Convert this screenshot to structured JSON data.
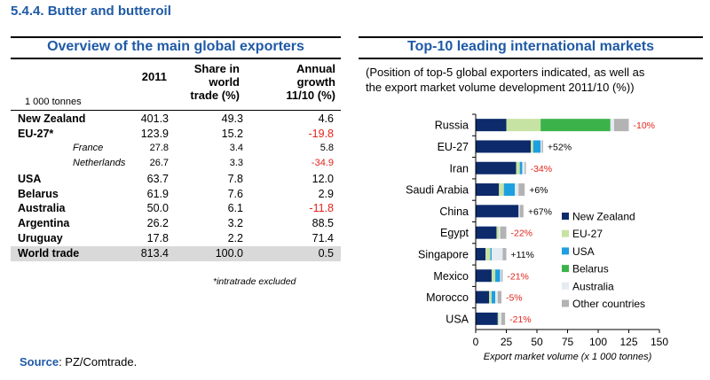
{
  "section_title": "5.4.4. Butter and butteroil",
  "left_title": "Overview of the main global exporters",
  "table": {
    "unit": "1 000 tonnes",
    "headers": [
      "2011",
      "Share in\nworld\ntrade (%)",
      "Annual\ngrowth\n11/10 (%)"
    ],
    "rows": [
      {
        "name": "New Zealand",
        "v2011": "401.3",
        "share": "49.3",
        "growth": "4.6",
        "sub": false,
        "neg": false
      },
      {
        "name": "EU-27*",
        "v2011": "123.9",
        "share": "15.2",
        "growth": "-19.8",
        "sub": false,
        "neg": true
      },
      {
        "name": "France",
        "v2011": "27.8",
        "share": "3.4",
        "growth": "5.8",
        "sub": true,
        "neg": false
      },
      {
        "name": "Netherlands",
        "v2011": "26.7",
        "share": "3.3",
        "growth": "-34.9",
        "sub": true,
        "neg": true
      },
      {
        "name": "USA",
        "v2011": "63.7",
        "share": "7.8",
        "growth": "12.0",
        "sub": false,
        "neg": false
      },
      {
        "name": "Belarus",
        "v2011": "61.9",
        "share": "7.6",
        "growth": "2.9",
        "sub": false,
        "neg": false
      },
      {
        "name": "Australia",
        "v2011": "50.0",
        "share": "6.1",
        "growth": "-11.8",
        "sub": false,
        "neg": true
      },
      {
        "name": "Argentina",
        "v2011": "26.2",
        "share": "3.2",
        "growth": "88.5",
        "sub": false,
        "neg": false
      },
      {
        "name": "Uruguay",
        "v2011": "17.8",
        "share": "2.2",
        "growth": "71.4",
        "sub": false,
        "neg": false
      },
      {
        "name": "World trade",
        "v2011": "813.4",
        "share": "100.0",
        "growth": "0.5",
        "sub": false,
        "neg": false,
        "total": true
      }
    ],
    "footnote": "*intratrade excluded"
  },
  "source_label": "Source",
  "source_text": ": PZ/Comtrade.",
  "right_title": "Top-10 leading international markets",
  "right_subtitle_1": "(Position of top-5 global exporters indicated, as well as",
  "right_subtitle_2": "the export market volume development  2011/10 (%))",
  "chart_data": {
    "type": "bar",
    "orientation": "horizontal",
    "stacked": true,
    "categories": [
      "Russia",
      "EU-27",
      "Iran",
      "Saudi Arabia",
      "China",
      "Egypt",
      "Singapore",
      "Mexico",
      "Morocco",
      "USA"
    ],
    "series": [
      {
        "name": "New Zealand",
        "color": "#0d2a6b",
        "values": [
          25,
          45,
          33,
          19,
          35,
          17,
          8,
          13,
          11,
          18
        ]
      },
      {
        "name": "EU-27",
        "color": "#c7e3a3",
        "values": [
          28,
          2,
          3,
          4,
          0,
          2,
          4,
          3,
          2,
          1
        ]
      },
      {
        "name": "USA",
        "color": "#1e9fe0",
        "values": [
          0,
          6,
          2,
          9,
          0,
          0,
          1,
          4,
          3,
          0
        ]
      },
      {
        "name": "Belarus",
        "color": "#3cb34a",
        "values": [
          57,
          0,
          0,
          0,
          0,
          0,
          0,
          0,
          0,
          0
        ]
      },
      {
        "name": "Australia",
        "color": "#e4ebf3",
        "values": [
          3,
          1,
          2,
          3,
          1,
          1,
          9,
          1,
          2,
          2
        ]
      },
      {
        "name": "Other countries",
        "color": "#b3b3b3",
        "values": [
          12,
          1,
          1,
          5,
          3,
          5,
          3,
          1,
          3,
          3
        ]
      }
    ],
    "annotations": [
      "-10%",
      "+52%",
      "-34%",
      "+6%",
      "+67%",
      "-22%",
      "+11%",
      "-21%",
      "-5%",
      "-21%"
    ],
    "xlim": [
      0,
      150
    ],
    "xticks": [
      "0",
      "25",
      "50",
      "75",
      "100",
      "125",
      "150"
    ],
    "xlabel": "Export market volume (x 1 000 tonnes)",
    "legend_position": "lower-right",
    "grid": false
  }
}
